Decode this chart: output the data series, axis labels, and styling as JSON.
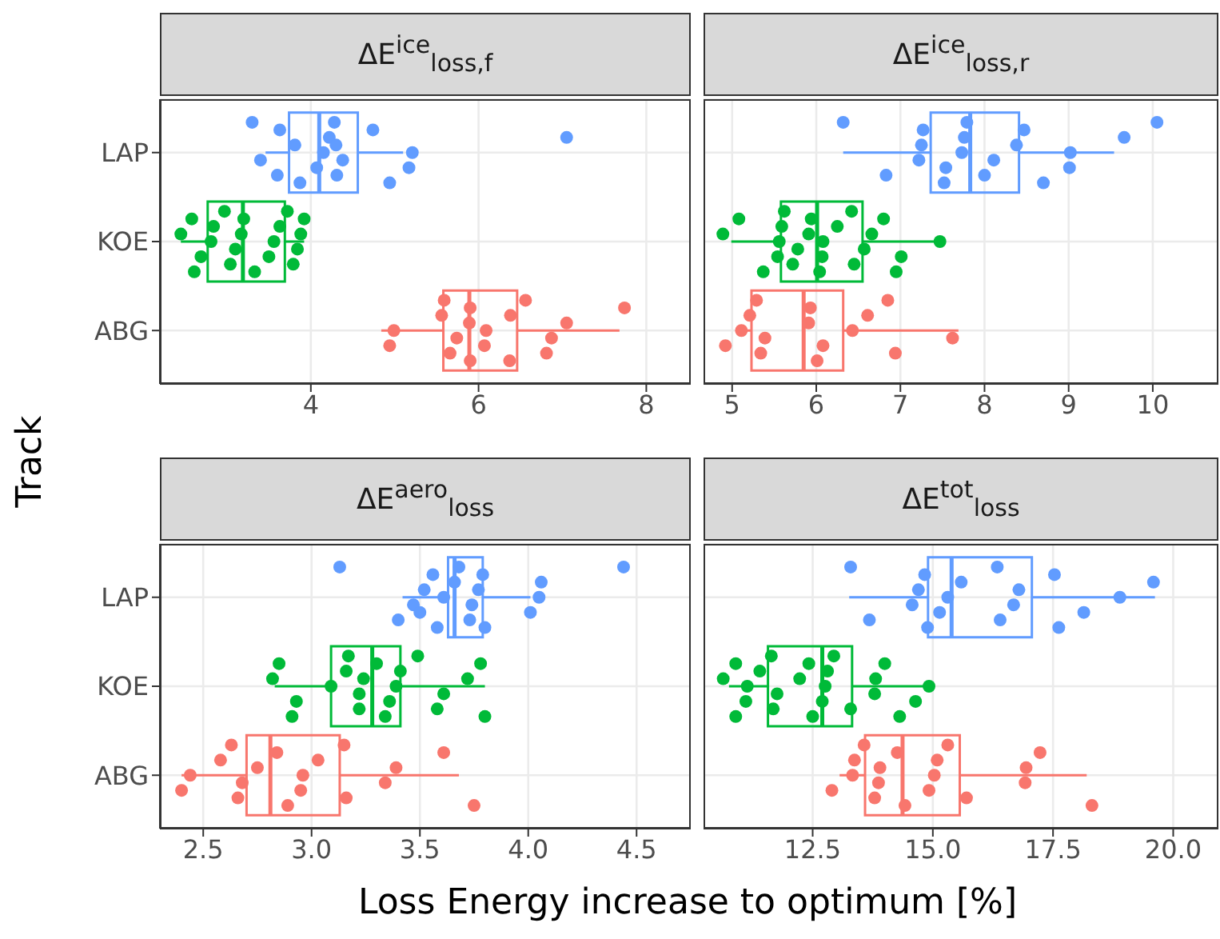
{
  "chart_data": [
    {
      "type": "box",
      "orientation": "horizontal",
      "title": "ΔE$^{ice}$$_{loss,f}$",
      "ylabel": "Track",
      "categories": [
        "LAP",
        "KOE",
        "ABG"
      ],
      "colors": [
        "#619cff",
        "#00ba38",
        "#f8766d"
      ],
      "boxes": [
        {
          "low": 3.46,
          "q1": 3.74,
          "median": 4.1,
          "q3": 4.56,
          "high": 5.1
        },
        {
          "low": 2.45,
          "q1": 2.77,
          "median": 3.19,
          "q3": 3.69,
          "high": 3.92
        },
        {
          "low": 4.84,
          "q1": 5.58,
          "median": 5.89,
          "q3": 6.46,
          "high": 7.68
        }
      ],
      "series": [
        {
          "type": "scatter",
          "color": "#619cff",
          "x": [
            "LAP",
            "LAP",
            "LAP",
            "LAP",
            "LAP",
            "LAP",
            "LAP",
            "LAP",
            "LAP",
            "LAP",
            "LAP",
            "LAP",
            "LAP",
            "LAP",
            "LAP",
            "LAP",
            "LAP",
            "LAP"
          ],
          "values": [
            3.3,
            3.6,
            3.4,
            3.81,
            3.63,
            3.87,
            4.07,
            4.15,
            4.22,
            4.28,
            4.31,
            4.38,
            4.3,
            4.74,
            4.94,
            5.17,
            5.21,
            7.05
          ]
        },
        {
          "type": "scatter",
          "color": "#00ba38",
          "x": [
            "KOE",
            "KOE",
            "KOE",
            "KOE",
            "KOE",
            "KOE",
            "KOE",
            "KOE",
            "KOE",
            "KOE",
            "KOE",
            "KOE",
            "KOE",
            "KOE",
            "KOE",
            "KOE",
            "KOE",
            "KOE",
            "KOE",
            "KOE"
          ],
          "values": [
            2.45,
            2.58,
            2.61,
            2.69,
            2.81,
            2.84,
            2.97,
            3.04,
            3.1,
            3.17,
            3.2,
            3.33,
            3.5,
            3.56,
            3.63,
            3.72,
            3.79,
            3.84,
            3.88,
            3.92
          ]
        },
        {
          "type": "scatter",
          "color": "#f8766d",
          "x": [
            "ABG",
            "ABG",
            "ABG",
            "ABG",
            "ABG",
            "ABG",
            "ABG",
            "ABG",
            "ABG",
            "ABG",
            "ABG",
            "ABG",
            "ABG",
            "ABG",
            "ABG",
            "ABG",
            "ABG",
            "ABG"
          ],
          "values": [
            4.94,
            4.99,
            5.56,
            5.59,
            5.66,
            5.74,
            5.89,
            5.9,
            5.9,
            6.07,
            6.09,
            6.38,
            6.56,
            6.81,
            6.87,
            7.05,
            7.74,
            6.37
          ]
        }
      ],
      "xlim": [
        2.2,
        8.53
      ],
      "xticks": [
        4,
        6,
        8
      ],
      "grid": true
    },
    {
      "type": "box",
      "orientation": "horizontal",
      "title": "ΔE$^{ice}$$_{loss,r}$",
      "tick_labels": "x",
      "categories": [
        "LAP",
        "KOE",
        "ABG"
      ],
      "colors": [
        "#619cff",
        "#00ba38",
        "#f8766d"
      ],
      "boxes": [
        {
          "low": 6.32,
          "q1": 7.36,
          "median": 7.83,
          "q3": 8.41,
          "high": 9.54
        },
        {
          "low": 4.99,
          "q1": 5.58,
          "median": 6.01,
          "q3": 6.55,
          "high": 7.47
        },
        {
          "low": 5.04,
          "q1": 5.23,
          "median": 5.85,
          "q3": 6.32,
          "high": 7.69
        }
      ],
      "series": [
        {
          "type": "scatter",
          "color": "#619cff",
          "x": [
            "LAP",
            "LAP",
            "LAP",
            "LAP",
            "LAP",
            "LAP",
            "LAP",
            "LAP",
            "LAP",
            "LAP",
            "LAP",
            "LAP",
            "LAP",
            "LAP",
            "LAP",
            "LAP",
            "LAP",
            "LAP",
            "LAP"
          ],
          "values": [
            6.32,
            6.83,
            7.22,
            7.25,
            7.27,
            7.52,
            7.54,
            7.73,
            7.76,
            7.79,
            8.0,
            8.11,
            8.38,
            8.47,
            8.7,
            9.01,
            9.02,
            9.66,
            10.05
          ]
        },
        {
          "type": "scatter",
          "color": "#00ba38",
          "x": [
            "KOE",
            "KOE",
            "KOE",
            "KOE",
            "KOE",
            "KOE",
            "KOE",
            "KOE",
            "KOE",
            "KOE",
            "KOE",
            "KOE",
            "KOE",
            "KOE",
            "KOE",
            "KOE",
            "KOE",
            "KOE",
            "KOE",
            "KOE",
            "KOE",
            "KOE",
            "KOE"
          ],
          "values": [
            4.89,
            5.08,
            5.37,
            5.54,
            5.56,
            5.59,
            5.62,
            5.72,
            5.78,
            5.91,
            5.94,
            6.04,
            6.07,
            6.08,
            6.25,
            6.42,
            6.45,
            6.57,
            6.66,
            6.8,
            6.95,
            7.01,
            7.47
          ]
        },
        {
          "type": "scatter",
          "color": "#f8766d",
          "x": [
            "ABG",
            "ABG",
            "ABG",
            "ABG",
            "ABG",
            "ABG",
            "ABG",
            "ABG",
            "ABG",
            "ABG",
            "ABG",
            "ABG",
            "ABG",
            "ABG",
            "ABG"
          ],
          "values": [
            4.92,
            5.11,
            5.21,
            5.29,
            5.34,
            5.39,
            5.91,
            5.93,
            6.01,
            6.08,
            6.43,
            6.61,
            6.85,
            6.94,
            7.62
          ]
        }
      ],
      "xlim": [
        4.66,
        10.78
      ],
      "xticks": [
        5,
        6,
        7,
        8,
        9,
        10
      ],
      "grid": true
    },
    {
      "type": "box",
      "orientation": "horizontal",
      "title": "ΔE$^{aero}$$_{loss}$",
      "xlabel": "Loss Energy increase to optimum [%]",
      "categories": [
        "LAP",
        "KOE",
        "ABG"
      ],
      "colors": [
        "#619cff",
        "#00ba38",
        "#f8766d"
      ],
      "boxes": [
        {
          "low": 3.42,
          "q1": 3.63,
          "median": 3.66,
          "q3": 3.79,
          "high": 4.01
        },
        {
          "low": 2.83,
          "q1": 3.09,
          "median": 3.28,
          "q3": 3.41,
          "high": 3.8
        },
        {
          "low": 2.4,
          "q1": 2.7,
          "median": 2.81,
          "q3": 3.13,
          "high": 3.68
        }
      ],
      "series": [
        {
          "type": "scatter",
          "color": "#619cff",
          "x": [
            "LAP",
            "LAP",
            "LAP",
            "LAP",
            "LAP",
            "LAP",
            "LAP",
            "LAP",
            "LAP",
            "LAP",
            "LAP",
            "LAP",
            "LAP",
            "LAP",
            "LAP",
            "LAP",
            "LAP",
            "LAP",
            "LAP"
          ],
          "values": [
            3.13,
            3.4,
            3.47,
            3.52,
            3.56,
            3.58,
            3.5,
            3.61,
            3.66,
            3.68,
            3.73,
            3.74,
            3.77,
            3.79,
            3.8,
            4.01,
            4.05,
            4.06,
            4.44
          ]
        },
        {
          "type": "scatter",
          "color": "#00ba38",
          "x": [
            "KOE",
            "KOE",
            "KOE",
            "KOE",
            "KOE",
            "KOE",
            "KOE",
            "KOE",
            "KOE",
            "KOE",
            "KOE",
            "KOE",
            "KOE",
            "KOE",
            "KOE",
            "KOE",
            "KOE",
            "KOE",
            "KOE",
            "KOE",
            "KOE"
          ],
          "values": [
            2.82,
            2.85,
            2.91,
            2.93,
            3.09,
            3.16,
            3.17,
            3.22,
            3.22,
            3.24,
            3.3,
            3.34,
            3.36,
            3.39,
            3.41,
            3.49,
            3.58,
            3.61,
            3.72,
            3.78,
            3.8
          ]
        },
        {
          "type": "scatter",
          "color": "#f8766d",
          "x": [
            "ABG",
            "ABG",
            "ABG",
            "ABG",
            "ABG",
            "ABG",
            "ABG",
            "ABG",
            "ABG",
            "ABG",
            "ABG",
            "ABG",
            "ABG",
            "ABG",
            "ABG",
            "ABG",
            "ABG",
            "ABG"
          ],
          "values": [
            2.4,
            2.44,
            2.58,
            2.63,
            2.66,
            2.68,
            2.75,
            2.84,
            2.89,
            2.95,
            2.96,
            3.03,
            3.15,
            3.16,
            3.34,
            3.39,
            3.61,
            3.75
          ]
        }
      ],
      "xlim": [
        2.3,
        4.75
      ],
      "xticks": [
        2.5,
        {
          "value": 3,
          "label": "3.0"
        },
        3.5,
        {
          "value": 4,
          "label": "4.0"
        },
        4.5
      ],
      "grid": true
    },
    {
      "type": "box",
      "orientation": "horizontal",
      "title": "ΔE$^{tot}$$_{loss}$",
      "tick_labels": "x",
      "categories": [
        "LAP",
        "KOE",
        "ABG"
      ],
      "colors": [
        "#619cff",
        "#00ba38",
        "#f8766d"
      ],
      "boxes": [
        {
          "low": 13.26,
          "q1": 14.9,
          "median": 15.39,
          "q3": 17.06,
          "high": 19.62
        },
        {
          "low": 10.76,
          "q1": 11.57,
          "median": 12.7,
          "q3": 13.32,
          "high": 14.81
        },
        {
          "low": 13.06,
          "q1": 13.59,
          "median": 14.37,
          "q3": 15.56,
          "high": 18.2
        }
      ],
      "series": [
        {
          "type": "scatter",
          "color": "#619cff",
          "x": [
            "LAP",
            "LAP",
            "LAP",
            "LAP",
            "LAP",
            "LAP",
            "LAP",
            "LAP",
            "LAP",
            "LAP",
            "LAP",
            "LAP",
            "LAP",
            "LAP",
            "LAP",
            "LAP",
            "LAP",
            "LAP"
          ],
          "values": [
            13.29,
            13.68,
            14.57,
            14.7,
            14.83,
            14.89,
            15.14,
            15.31,
            15.59,
            16.34,
            16.4,
            16.68,
            16.79,
            17.53,
            17.62,
            18.14,
            18.89,
            19.59
          ]
        },
        {
          "type": "scatter",
          "color": "#00ba38",
          "x": [
            "KOE",
            "KOE",
            "KOE",
            "KOE",
            "KOE",
            "KOE",
            "KOE",
            "KOE",
            "KOE",
            "KOE",
            "KOE",
            "KOE",
            "KOE",
            "KOE",
            "KOE",
            "KOE",
            "KOE",
            "KOE",
            "KOE",
            "KOE",
            "KOE",
            "KOE",
            "KOE"
          ],
          "values": [
            10.64,
            10.9,
            10.9,
            11.11,
            11.14,
            11.4,
            11.64,
            11.68,
            11.76,
            12.23,
            12.42,
            12.5,
            12.7,
            12.76,
            12.81,
            12.94,
            13.29,
            13.79,
            13.81,
            14.0,
            14.31,
            14.64,
            14.92
          ]
        },
        {
          "type": "scatter",
          "color": "#f8766d",
          "x": [
            "ABG",
            "ABG",
            "ABG",
            "ABG",
            "ABG",
            "ABG",
            "ABG",
            "ABG",
            "ABG",
            "ABG",
            "ABG",
            "ABG",
            "ABG",
            "ABG",
            "ABG",
            "ABG",
            "ABG",
            "ABG"
          ],
          "values": [
            12.9,
            13.33,
            13.37,
            13.57,
            13.79,
            13.87,
            13.9,
            14.26,
            14.42,
            14.92,
            15.03,
            15.09,
            15.31,
            15.7,
            16.92,
            16.94,
            17.23,
            18.31
          ]
        }
      ],
      "xlim": [
        10.23,
        20.94
      ],
      "xticks": [
        12.5,
        {
          "value": 15,
          "label": "15.0"
        },
        17.5,
        {
          "value": 20,
          "label": "20.0"
        }
      ],
      "grid": true
    }
  ]
}
